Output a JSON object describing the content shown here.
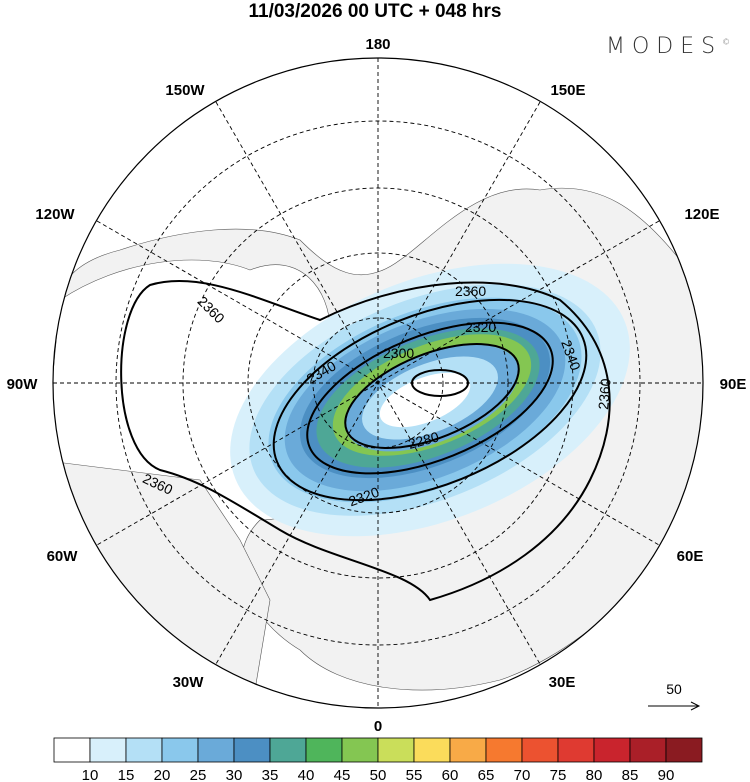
{
  "title": "11/03/2026  00 UTC  + 048 hrs",
  "logo": {
    "text": "MODES",
    "mark": "©"
  },
  "longitude_labels": [
    "180",
    "150E",
    "120E",
    "90E",
    "60E",
    "30E",
    "0",
    "30W",
    "60W",
    "90W",
    "120W",
    "150W"
  ],
  "contour_labels": [
    "2360",
    "2360",
    "2360",
    "2360",
    "2340",
    "2340",
    "2320",
    "2320",
    "2300",
    "2280"
  ],
  "vector_reference": {
    "label": "50"
  },
  "colorbar": {
    "labels": [
      "10",
      "15",
      "20",
      "25",
      "30",
      "35",
      "40",
      "45",
      "50",
      "55",
      "60",
      "65",
      "70",
      "75",
      "80",
      "85",
      "90"
    ],
    "colors": [
      "#ffffff",
      "#d8f0fb",
      "#b4e0f6",
      "#8ac8ec",
      "#6aaad9",
      "#4c8fc3",
      "#4ea796",
      "#4fb55b",
      "#84c652",
      "#cade5a",
      "#fbdc5b",
      "#f8aa47",
      "#f6792f",
      "#ec5230",
      "#df3a31",
      "#c9242d",
      "#aa1f28",
      "#8a1b21"
    ]
  },
  "colors": {
    "land": "#f2f2f2",
    "ocean": "#ffffff"
  }
}
